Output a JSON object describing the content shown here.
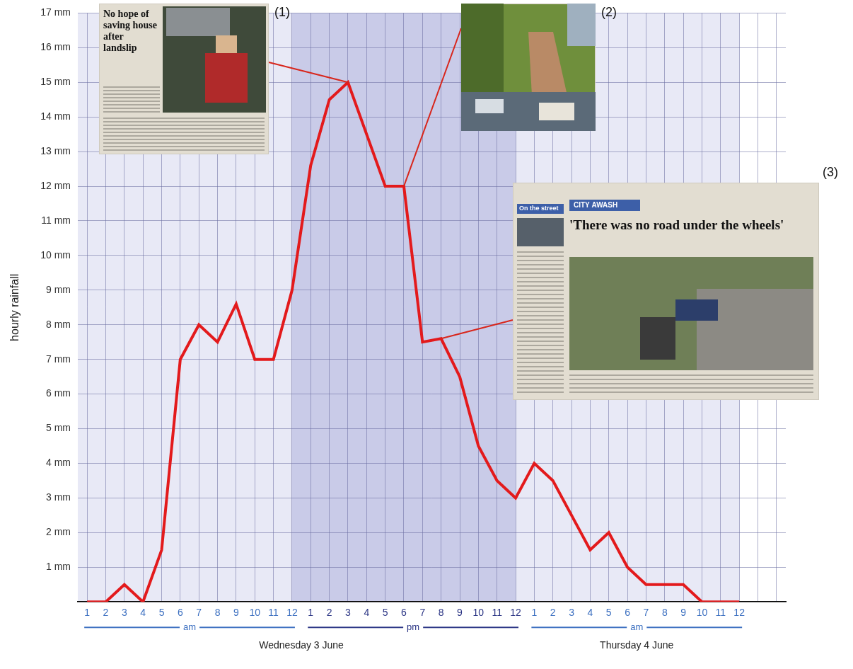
{
  "chart_data": {
    "type": "line",
    "y_label": "hourly rainfall",
    "categories": [
      "1",
      "2",
      "3",
      "4",
      "5",
      "6",
      "7",
      "8",
      "9",
      "10",
      "11",
      "12",
      "1",
      "2",
      "3",
      "4",
      "5",
      "6",
      "7",
      "8",
      "9",
      "10",
      "11",
      "12",
      "1",
      "2",
      "3",
      "4",
      "5",
      "6",
      "7",
      "8",
      "9",
      "10",
      "11",
      "12",
      null,
      null
    ],
    "values": [
      0,
      0,
      0.5,
      0,
      1.5,
      7,
      8,
      7.5,
      8.6,
      7,
      7,
      9,
      12.6,
      14.5,
      15,
      13.5,
      12,
      12,
      7.5,
      7.6,
      6.5,
      4.5,
      3.5,
      3,
      4,
      3.5,
      2.5,
      1.5,
      2,
      1,
      0.5,
      0.5,
      0.5,
      0,
      0,
      0,
      null,
      null
    ],
    "color": "#e31a1c",
    "ylim": [
      0,
      17
    ],
    "yticks": [
      {
        "value": 1,
        "label": "1 mm"
      },
      {
        "value": 2,
        "label": "2 mm"
      },
      {
        "value": 3,
        "label": "3 mm"
      },
      {
        "value": 4,
        "label": "4 mm"
      },
      {
        "value": 5,
        "label": "5 mm"
      },
      {
        "value": 6,
        "label": "6 mm"
      },
      {
        "value": 7,
        "label": "7 mm"
      },
      {
        "value": 8,
        "label": "8 mm"
      },
      {
        "value": 9,
        "label": "9 mm"
      },
      {
        "value": 10,
        "label": "10 mm"
      },
      {
        "value": 11,
        "label": "11 mm"
      },
      {
        "value": 12,
        "label": "12 mm"
      },
      {
        "value": 13,
        "label": "13 mm"
      },
      {
        "value": 14,
        "label": "14 mm"
      },
      {
        "value": 15,
        "label": "15 mm"
      },
      {
        "value": 16,
        "label": "16 mm"
      },
      {
        "value": 17,
        "label": "17 mm"
      }
    ],
    "grid": true,
    "x_groups": [
      {
        "label": "am",
        "start": 0,
        "end": 11,
        "color": "#e8e9f6"
      },
      {
        "label": "pm",
        "start": 12,
        "end": 23,
        "color": "#c9cbe8"
      },
      {
        "label": "am",
        "start": 24,
        "end": 35,
        "color": "#e8e9f6"
      }
    ],
    "x_days": [
      {
        "label": "Wednesday 3 June",
        "start": 0,
        "end": 23
      },
      {
        "label": "Thursday 4 June",
        "start": 24,
        "end": 35
      }
    ],
    "annotations": [
      {
        "label": "(1)",
        "index": 14,
        "headline": "No hope of saving house after landslip"
      },
      {
        "label": "(2)",
        "index": 17
      },
      {
        "label": "(3)",
        "index": 19,
        "section": "CITY AWASH",
        "column": "On the street",
        "headline": "'There was no road under the wheels'"
      }
    ]
  }
}
